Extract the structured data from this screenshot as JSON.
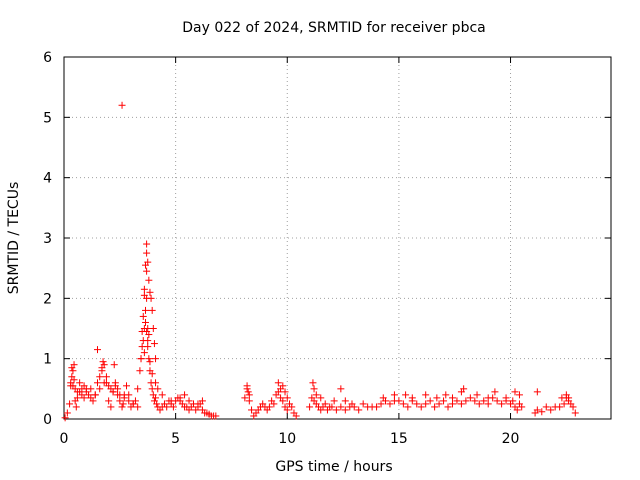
{
  "chart_data": {
    "type": "scatter",
    "title": "Day 022 of 2024, SRMTID for receiver pbca",
    "xlabel": "GPS time / hours",
    "ylabel": "SRMTID / TECUs",
    "xlim": [
      0,
      24.5
    ],
    "ylim": [
      0,
      6
    ],
    "xticks": [
      0,
      5,
      10,
      15,
      20
    ],
    "yticks": [
      0,
      1,
      2,
      3,
      4,
      5,
      6
    ],
    "grid": true,
    "marker": "+",
    "color": "#ff0000",
    "series": [
      {
        "name": "SRMTID",
        "x": [
          0.05,
          0.15,
          0.25,
          0.3,
          0.35,
          0.4,
          0.45,
          0.5,
          0.55,
          0.6,
          0.7,
          0.8,
          0.9,
          1.0,
          1.1,
          1.2,
          1.3,
          1.4,
          1.5,
          1.6,
          1.7,
          1.8,
          1.9,
          2.0,
          2.1,
          2.2,
          2.3,
          2.4,
          2.5,
          2.6,
          2.65,
          2.7,
          2.8,
          2.9,
          3.0,
          3.1,
          3.2,
          3.3,
          3.4,
          3.45,
          3.5,
          3.55,
          3.6,
          3.65,
          3.7,
          3.75,
          3.8,
          3.85,
          3.9,
          3.95,
          4.0,
          4.05,
          4.1,
          4.15,
          4.2,
          4.3,
          4.4,
          4.5,
          4.6,
          4.7,
          4.8,
          4.9,
          5.0,
          5.1,
          5.2,
          5.3,
          5.4,
          5.5,
          5.6,
          5.7,
          5.8,
          5.9,
          6.0,
          6.1,
          6.2,
          6.3,
          6.4,
          6.5,
          6.6,
          6.7,
          6.8,
          8.1,
          8.2,
          8.3,
          8.4,
          8.5,
          8.6,
          8.7,
          8.8,
          8.9,
          9.0,
          9.1,
          9.2,
          9.3,
          9.4,
          9.5,
          9.6,
          9.7,
          9.8,
          9.9,
          10.0,
          10.1,
          10.2,
          10.3,
          10.4,
          11.0,
          11.1,
          11.2,
          11.3,
          11.4,
          11.5,
          11.6,
          11.7,
          11.8,
          11.9,
          12.0,
          12.2,
          12.4,
          12.6,
          12.8,
          13.0,
          13.2,
          13.4,
          13.6,
          13.8,
          14.0,
          14.2,
          14.4,
          14.6,
          14.8,
          15.0,
          15.2,
          15.4,
          15.6,
          15.8,
          16.0,
          16.2,
          16.4,
          16.6,
          16.8,
          17.0,
          17.2,
          17.4,
          17.6,
          17.8,
          18.0,
          18.2,
          18.4,
          18.6,
          18.8,
          19.0,
          19.2,
          19.4,
          19.6,
          19.8,
          20.0,
          20.1,
          20.2,
          20.3,
          20.4,
          20.5,
          21.1,
          21.2,
          21.4,
          21.6,
          21.8,
          22.0,
          22.2,
          22.4,
          22.5,
          22.6,
          22.7,
          22.8,
          22.9,
          2.6,
          0.35,
          0.45,
          1.75,
          2.25,
          3.45,
          3.5,
          3.55,
          3.6,
          3.65,
          3.7,
          3.75,
          3.8,
          3.85,
          3.9,
          3.95,
          4.0,
          4.05,
          4.1,
          3.6,
          3.7,
          3.65,
          3.75,
          3.7,
          3.8,
          3.6,
          3.7,
          3.75,
          3.85,
          3.95,
          4.1,
          4.2,
          0.3,
          0.4,
          0.5,
          0.6,
          0.7,
          0.8,
          0.9,
          1.0,
          1.2,
          1.4,
          1.6,
          1.8,
          2.0,
          2.2,
          2.4,
          1.5,
          1.7,
          1.9,
          2.1,
          2.3,
          2.5,
          2.7,
          2.9,
          3.1,
          3.3,
          4.4,
          4.8,
          5.2,
          5.4,
          5.6,
          6.0,
          6.2,
          8.2,
          8.25,
          8.3,
          9.6,
          9.7,
          9.8,
          9.9,
          10.0,
          11.15,
          11.2,
          11.3,
          11.5,
          12.1,
          12.4,
          12.6,
          12.9,
          14.3,
          14.8,
          15.3,
          15.6,
          16.2,
          16.7,
          17.1,
          17.4,
          17.8,
          17.9,
          18.5,
          19.0,
          19.3,
          19.8,
          20.2,
          20.4,
          21.2,
          22.3,
          22.5,
          22.6
        ],
        "y": [
          0.02,
          0.1,
          0.25,
          0.55,
          0.7,
          0.8,
          0.65,
          0.3,
          0.2,
          0.35,
          0.45,
          0.5,
          0.55,
          0.5,
          0.4,
          0.35,
          0.3,
          0.4,
          0.6,
          0.5,
          0.8,
          0.9,
          0.6,
          0.3,
          0.2,
          0.45,
          0.6,
          0.5,
          0.3,
          0.2,
          0.25,
          0.4,
          0.55,
          0.4,
          0.2,
          0.25,
          0.3,
          0.5,
          0.8,
          1.0,
          1.2,
          1.3,
          1.5,
          1.6,
          1.45,
          1.2,
          1.0,
          0.8,
          0.6,
          0.5,
          0.4,
          0.3,
          0.35,
          0.25,
          0.2,
          0.15,
          0.2,
          0.25,
          0.2,
          0.3,
          0.25,
          0.2,
          0.3,
          0.35,
          0.3,
          0.25,
          0.2,
          0.2,
          0.15,
          0.2,
          0.25,
          0.15,
          0.2,
          0.25,
          0.15,
          0.1,
          0.1,
          0.08,
          0.05,
          0.05,
          0.05,
          0.35,
          0.5,
          0.3,
          0.15,
          0.05,
          0.1,
          0.15,
          0.2,
          0.25,
          0.2,
          0.15,
          0.2,
          0.3,
          0.25,
          0.4,
          0.45,
          0.35,
          0.3,
          0.2,
          0.15,
          0.25,
          0.2,
          0.1,
          0.05,
          0.2,
          0.35,
          0.3,
          0.25,
          0.2,
          0.15,
          0.2,
          0.25,
          0.15,
          0.2,
          0.2,
          0.15,
          0.2,
          0.15,
          0.2,
          0.2,
          0.15,
          0.25,
          0.2,
          0.2,
          0.2,
          0.25,
          0.3,
          0.25,
          0.3,
          0.3,
          0.25,
          0.2,
          0.3,
          0.25,
          0.2,
          0.25,
          0.3,
          0.2,
          0.25,
          0.3,
          0.2,
          0.25,
          0.3,
          0.25,
          0.3,
          0.35,
          0.3,
          0.25,
          0.3,
          0.25,
          0.35,
          0.3,
          0.25,
          0.3,
          0.25,
          0.3,
          0.2,
          0.15,
          0.25,
          0.2,
          0.1,
          0.15,
          0.12,
          0.2,
          0.15,
          0.2,
          0.2,
          0.25,
          0.35,
          0.3,
          0.25,
          0.2,
          0.1,
          5.2,
          0.85,
          0.9,
          0.95,
          0.9,
          1.0,
          1.45,
          1.7,
          2.05,
          2.55,
          2.9,
          2.6,
          2.3,
          2.1,
          2.0,
          1.8,
          1.5,
          1.25,
          1.0,
          2.15,
          2.0,
          1.8,
          1.5,
          2.75,
          1.4,
          1.1,
          2.45,
          1.3,
          0.95,
          0.75,
          0.6,
          0.5,
          0.6,
          0.55,
          0.5,
          0.45,
          0.6,
          0.4,
          0.35,
          0.45,
          0.5,
          0.4,
          0.7,
          0.6,
          0.55,
          0.45,
          0.4,
          1.15,
          0.85,
          0.7,
          0.5,
          0.55,
          0.4,
          0.35,
          0.3,
          0.25,
          0.2,
          0.4,
          0.3,
          0.35,
          0.4,
          0.3,
          0.25,
          0.3,
          0.55,
          0.45,
          0.4,
          0.6,
          0.5,
          0.55,
          0.45,
          0.35,
          0.6,
          0.5,
          0.4,
          0.35,
          0.3,
          0.5,
          0.3,
          0.25,
          0.35,
          0.4,
          0.4,
          0.35,
          0.4,
          0.35,
          0.4,
          0.35,
          0.45,
          0.5,
          0.4,
          0.35,
          0.45,
          0.35,
          0.45,
          0.4,
          0.45,
          0.35,
          0.4,
          0.35
        ]
      }
    ]
  }
}
